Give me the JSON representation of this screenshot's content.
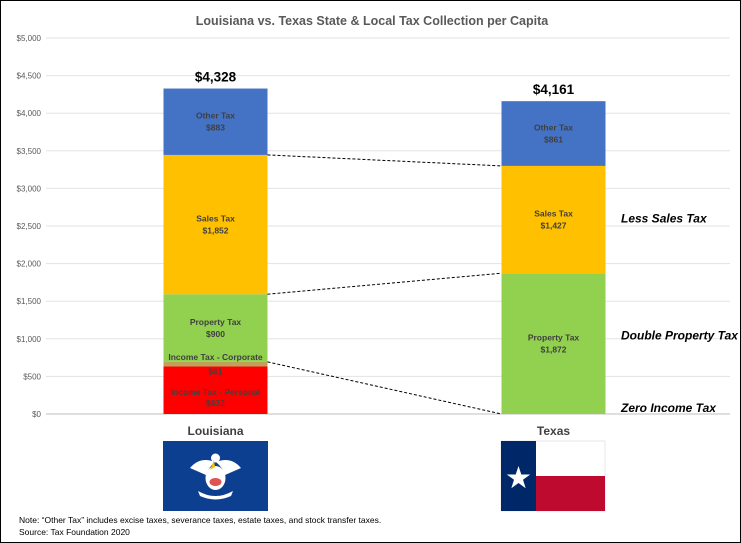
{
  "chart_data": {
    "type": "bar",
    "stacked": true,
    "title": "Louisiana vs. Texas State & Local Tax Collection per Capita",
    "ylim": [
      0,
      5000
    ],
    "ytick_labels": [
      "$0",
      "$500",
      "$1,000",
      "$1,500",
      "$2,000",
      "$2,500",
      "$3,000",
      "$3,500",
      "$4,000",
      "$4,500",
      "$5,000"
    ],
    "grid": true,
    "categories": [
      "Louisiana",
      "Texas"
    ],
    "totals": [
      "$4,328",
      "$4,161"
    ],
    "series": [
      {
        "name": "Income Tax - Personal",
        "values": [
          632,
          0
        ],
        "value_labels": [
          "$632",
          ""
        ],
        "color": "#ff0000"
      },
      {
        "name": "Income Tax - Corporate",
        "values": [
          61,
          0
        ],
        "value_labels": [
          "$61",
          ""
        ],
        "color": "#c0a15a"
      },
      {
        "name": "Property Tax",
        "values": [
          900,
          1872
        ],
        "value_labels": [
          "$900",
          "$1,872"
        ],
        "color": "#92d050"
      },
      {
        "name": "Sales Tax",
        "values": [
          1852,
          1427
        ],
        "value_labels": [
          "$1,852",
          "$1,427"
        ],
        "color": "#ffc000"
      },
      {
        "name": "Other Tax",
        "values": [
          883,
          861
        ],
        "value_labels": [
          "$883",
          "$861"
        ],
        "color": "#4472c4"
      }
    ],
    "annotations": [
      "Less Sales Tax",
      "Double Property Tax",
      "Zero Income Tax"
    ]
  },
  "footnotes": {
    "note": "Note:  “Other Tax” includes excise taxes, severance taxes, estate taxes, and stock transfer taxes.",
    "source": "Source:  Tax Foundation 2020"
  },
  "flags": {
    "louisiana": {
      "icon": "louisiana-flag-pelican-icon",
      "color": "#0c3f8f"
    },
    "texas": {
      "icon": "texas-flag-icon",
      "blue": "#002868",
      "red": "#bf0a30"
    }
  }
}
